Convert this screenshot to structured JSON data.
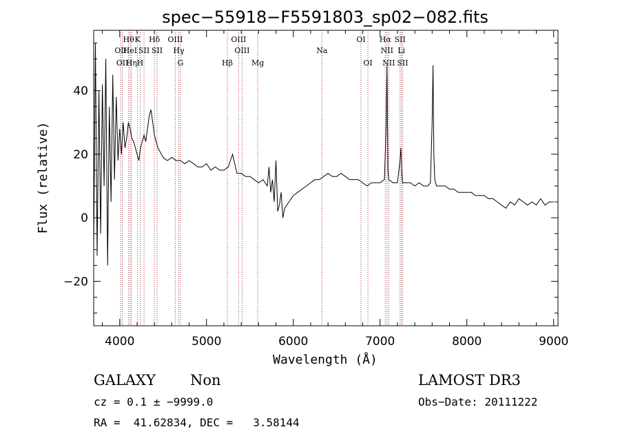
{
  "chart_data": {
    "type": "line",
    "title": "spec−55918−F5591803_sp02−082.fits",
    "xlabel": "Wavelength (Å)",
    "ylabel": "Flux (relative)",
    "xlim": [
      3700,
      9050
    ],
    "ylim": [
      -34,
      59
    ],
    "xticks": [
      4000,
      5000,
      6000,
      7000,
      8000,
      9000
    ],
    "yticks": [
      -20,
      0,
      20,
      40
    ],
    "ytick_labels": [
      "−20",
      "0",
      "20",
      "40"
    ],
    "grid": false,
    "series": [
      {
        "name": "flux",
        "x": [
          3700,
          3720,
          3740,
          3760,
          3780,
          3800,
          3820,
          3840,
          3860,
          3880,
          3900,
          3920,
          3940,
          3960,
          3980,
          4000,
          4020,
          4040,
          4060,
          4080,
          4100,
          4120,
          4140,
          4160,
          4180,
          4200,
          4220,
          4240,
          4260,
          4280,
          4300,
          4320,
          4340,
          4360,
          4380,
          4400,
          4420,
          4440,
          4460,
          4480,
          4500,
          4550,
          4600,
          4650,
          4700,
          4750,
          4800,
          4850,
          4900,
          4950,
          5000,
          5050,
          5100,
          5150,
          5200,
          5250,
          5300,
          5350,
          5400,
          5450,
          5500,
          5550,
          5600,
          5650,
          5700,
          5720,
          5740,
          5760,
          5780,
          5800,
          5820,
          5840,
          5860,
          5880,
          5900,
          5950,
          6000,
          6050,
          6100,
          6150,
          6200,
          6250,
          6300,
          6350,
          6400,
          6450,
          6500,
          6550,
          6600,
          6650,
          6700,
          6750,
          6800,
          6850,
          6900,
          6950,
          7000,
          7050,
          7060,
          7070,
          7080,
          7090,
          7100,
          7150,
          7200,
          7230,
          7240,
          7250,
          7260,
          7300,
          7350,
          7400,
          7450,
          7500,
          7550,
          7580,
          7600,
          7610,
          7620,
          7630,
          7650,
          7700,
          7750,
          7800,
          7850,
          7900,
          7950,
          8000,
          8050,
          8100,
          8150,
          8200,
          8250,
          8300,
          8350,
          8400,
          8450,
          8500,
          8550,
          8600,
          8650,
          8700,
          8750,
          8800,
          8850,
          8900,
          8950,
          9000
        ],
        "values": [
          -10,
          55,
          -12,
          40,
          -5,
          42,
          10,
          50,
          -15,
          35,
          5,
          45,
          12,
          38,
          18,
          28,
          20,
          30,
          22,
          25,
          30,
          28,
          25,
          24,
          22,
          20,
          18,
          22,
          24,
          26,
          24,
          28,
          32,
          34,
          30,
          26,
          24,
          22,
          21,
          20,
          19,
          18,
          19,
          18,
          18,
          17,
          18,
          17,
          16,
          16,
          17,
          15,
          16,
          15,
          15,
          16,
          20,
          14,
          14,
          13,
          13,
          12,
          11,
          12,
          10,
          16,
          8,
          12,
          5,
          18,
          2,
          4,
          8,
          0,
          3,
          5,
          7,
          8,
          9,
          10,
          11,
          12,
          12,
          13,
          14,
          13,
          13,
          14,
          13,
          12,
          12,
          12,
          11,
          10,
          11,
          11,
          11,
          12,
          20,
          30,
          48,
          15,
          12,
          11,
          11,
          18,
          22,
          14,
          11,
          11,
          11,
          10,
          11,
          10,
          10,
          11,
          30,
          48,
          20,
          12,
          10,
          10,
          10,
          9,
          9,
          8,
          8,
          8,
          8,
          7,
          7,
          7,
          6,
          6,
          5,
          4,
          3,
          5,
          4,
          6,
          5,
          4,
          5,
          4,
          6,
          4,
          5,
          5
        ]
      }
    ],
    "spectral_lines": [
      {
        "wl": 4010,
        "label": "OII",
        "row": 2
      },
      {
        "wl": 4030,
        "label": "OII",
        "row": 3
      },
      {
        "wl": 4102,
        "label": "Hθ",
        "row": 1
      },
      {
        "wl": 4120,
        "label": "HeI",
        "row": 2
      },
      {
        "wl": 4135,
        "label": "Hη",
        "row": 3
      },
      {
        "wl": 4205,
        "label": "K",
        "row": 1
      },
      {
        "wl": 4235,
        "label": "H",
        "row": 3
      },
      {
        "wl": 4280,
        "label": "SII",
        "row": 2
      },
      {
        "wl": 4400,
        "label": "Hδ",
        "row": 1
      },
      {
        "wl": 4430,
        "label": "SII",
        "row": 2
      },
      {
        "wl": 4640,
        "label": "OIII",
        "row": 1
      },
      {
        "wl": 4680,
        "label": "Hγ",
        "row": 2
      },
      {
        "wl": 4700,
        "label": "G",
        "row": 3
      },
      {
        "wl": 5240,
        "label": "Hβ",
        "row": 3
      },
      {
        "wl": 5370,
        "label": "OIII",
        "row": 1
      },
      {
        "wl": 5410,
        "label": "OIII",
        "row": 2
      },
      {
        "wl": 5590,
        "label": "Mg",
        "row": 3
      },
      {
        "wl": 6330,
        "label": "Na",
        "row": 2
      },
      {
        "wl": 6780,
        "label": "OI",
        "row": 1
      },
      {
        "wl": 6860,
        "label": "OI",
        "row": 3
      },
      {
        "wl": 7060,
        "label": "Hα",
        "row": 1
      },
      {
        "wl": 7080,
        "label": "NII",
        "row": 2
      },
      {
        "wl": 7100,
        "label": "NII",
        "row": 3
      },
      {
        "wl": 7230,
        "label": "SII",
        "row": 1
      },
      {
        "wl": 7245,
        "label": "Li",
        "row": 2
      },
      {
        "wl": 7260,
        "label": "SII",
        "row": 3
      }
    ]
  },
  "info": {
    "class_label": "GALAXY",
    "subclass_label": "Non",
    "survey_label": "LAMOST DR3",
    "cz_line": "cz = 0.1 ± −9999.0",
    "obs_date_line": "Obs−Date: 20111222",
    "radec_line": "RA =  41.62834, DEC =   3.58144"
  },
  "colors": {
    "line_marker": "#a0303a",
    "spectrum": "#000000"
  }
}
